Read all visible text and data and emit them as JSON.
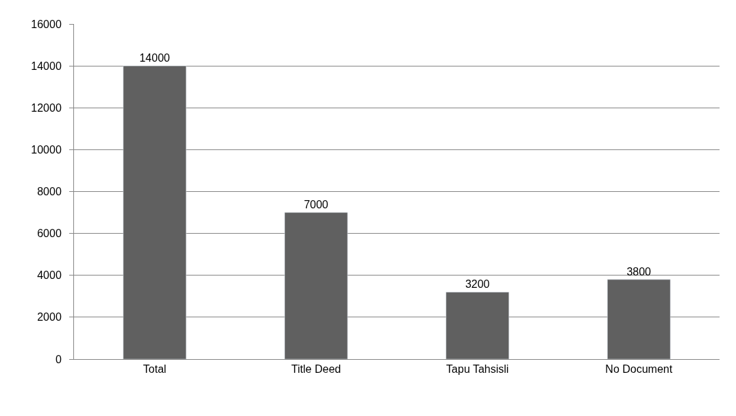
{
  "chart_data": {
    "type": "bar",
    "categories": [
      "Total",
      "Title Deed",
      "Tapu Tahsisli",
      "No Document"
    ],
    "values": [
      14000,
      7000,
      3200,
      3800
    ],
    "color": "#606060",
    "ylim": [
      0,
      16000
    ],
    "yticks": [
      0,
      2000,
      4000,
      6000,
      8000,
      10000,
      12000,
      14000,
      16000
    ],
    "grid": "y",
    "data_labels": true,
    "legend": false
  }
}
